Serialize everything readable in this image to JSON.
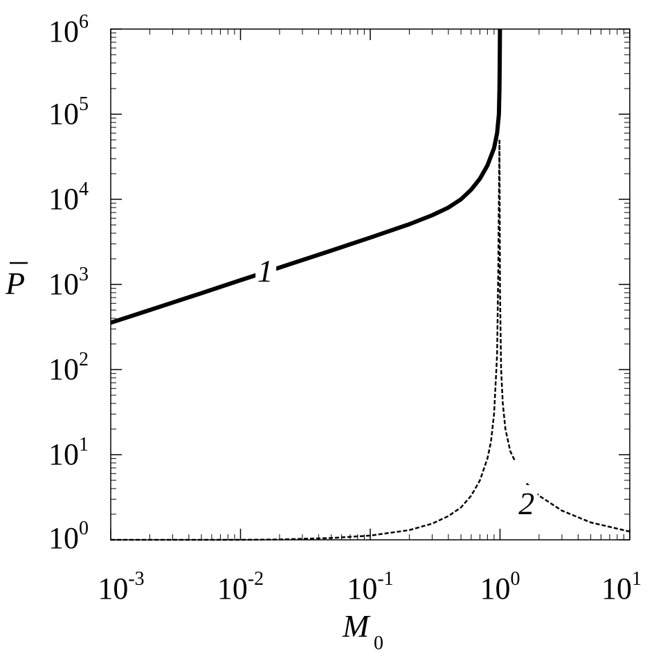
{
  "chart_data": {
    "type": "line",
    "xlabel": {
      "main": "M",
      "sub": "0"
    },
    "ylabel": {
      "main": "P"
    },
    "x_scale": "log",
    "y_scale": "log",
    "xlim": [
      0.001,
      10
    ],
    "ylim": [
      1,
      1000000
    ],
    "x_ticks": [
      {
        "value": 0.001,
        "base": "10",
        "exp": "-3"
      },
      {
        "value": 0.01,
        "base": "10",
        "exp": "-2"
      },
      {
        "value": 0.1,
        "base": "10",
        "exp": "-1"
      },
      {
        "value": 1,
        "base": "10",
        "exp": "0"
      },
      {
        "value": 10,
        "base": "10",
        "exp": "1"
      }
    ],
    "y_ticks": [
      {
        "value": 1,
        "base": "10",
        "exp": "0"
      },
      {
        "value": 10,
        "base": "10",
        "exp": "1"
      },
      {
        "value": 100,
        "base": "10",
        "exp": "2"
      },
      {
        "value": 1000,
        "base": "10",
        "exp": "3"
      },
      {
        "value": 10000,
        "base": "10",
        "exp": "4"
      },
      {
        "value": 100000,
        "base": "10",
        "exp": "5"
      },
      {
        "value": 1000000,
        "base": "10",
        "exp": "6"
      }
    ],
    "grid": false,
    "series": [
      {
        "label": "1",
        "style": "solid-thick",
        "label_at": {
          "x": 0.0155,
          "y": 1400
        },
        "points": [
          [
            0.001,
            355
          ],
          [
            0.002,
            500
          ],
          [
            0.005,
            790
          ],
          [
            0.01,
            1120
          ],
          [
            0.02,
            1580
          ],
          [
            0.05,
            2500
          ],
          [
            0.1,
            3550
          ],
          [
            0.2,
            5100
          ],
          [
            0.3,
            6500
          ],
          [
            0.4,
            8000
          ],
          [
            0.5,
            10000
          ],
          [
            0.6,
            13000
          ],
          [
            0.7,
            17500
          ],
          [
            0.8,
            25000
          ],
          [
            0.9,
            40000
          ],
          [
            0.95,
            60000
          ],
          [
            0.98,
            100000
          ],
          [
            0.99,
            200000
          ],
          [
            0.995,
            400000
          ],
          [
            0.999,
            1000000
          ]
        ]
      },
      {
        "label": "2",
        "style": "dashed",
        "label_at": {
          "x": 1.6,
          "y": 2.6
        },
        "points_left": [
          [
            0.001,
            1.0
          ],
          [
            0.01,
            1.0
          ],
          [
            0.02,
            1.01
          ],
          [
            0.05,
            1.05
          ],
          [
            0.1,
            1.12
          ],
          [
            0.2,
            1.3
          ],
          [
            0.3,
            1.55
          ],
          [
            0.4,
            1.9
          ],
          [
            0.5,
            2.4
          ],
          [
            0.6,
            3.3
          ],
          [
            0.7,
            5.0
          ],
          [
            0.8,
            9.0
          ],
          [
            0.85,
            14
          ],
          [
            0.9,
            30
          ],
          [
            0.95,
            150
          ],
          [
            0.97,
            1500
          ],
          [
            0.99,
            50000
          ]
        ],
        "points_right": [
          [
            0.99,
            50000
          ],
          [
            1.0,
            800
          ],
          [
            1.02,
            100
          ],
          [
            1.05,
            40
          ],
          [
            1.1,
            20
          ],
          [
            1.2,
            11
          ],
          [
            1.3,
            8.5
          ]
        ],
        "points_tail": [
          [
            1.6,
            4.6
          ],
          [
            2.0,
            3.3
          ],
          [
            3.0,
            2.2
          ],
          [
            5.0,
            1.6
          ],
          [
            10.0,
            1.25
          ]
        ]
      }
    ]
  }
}
